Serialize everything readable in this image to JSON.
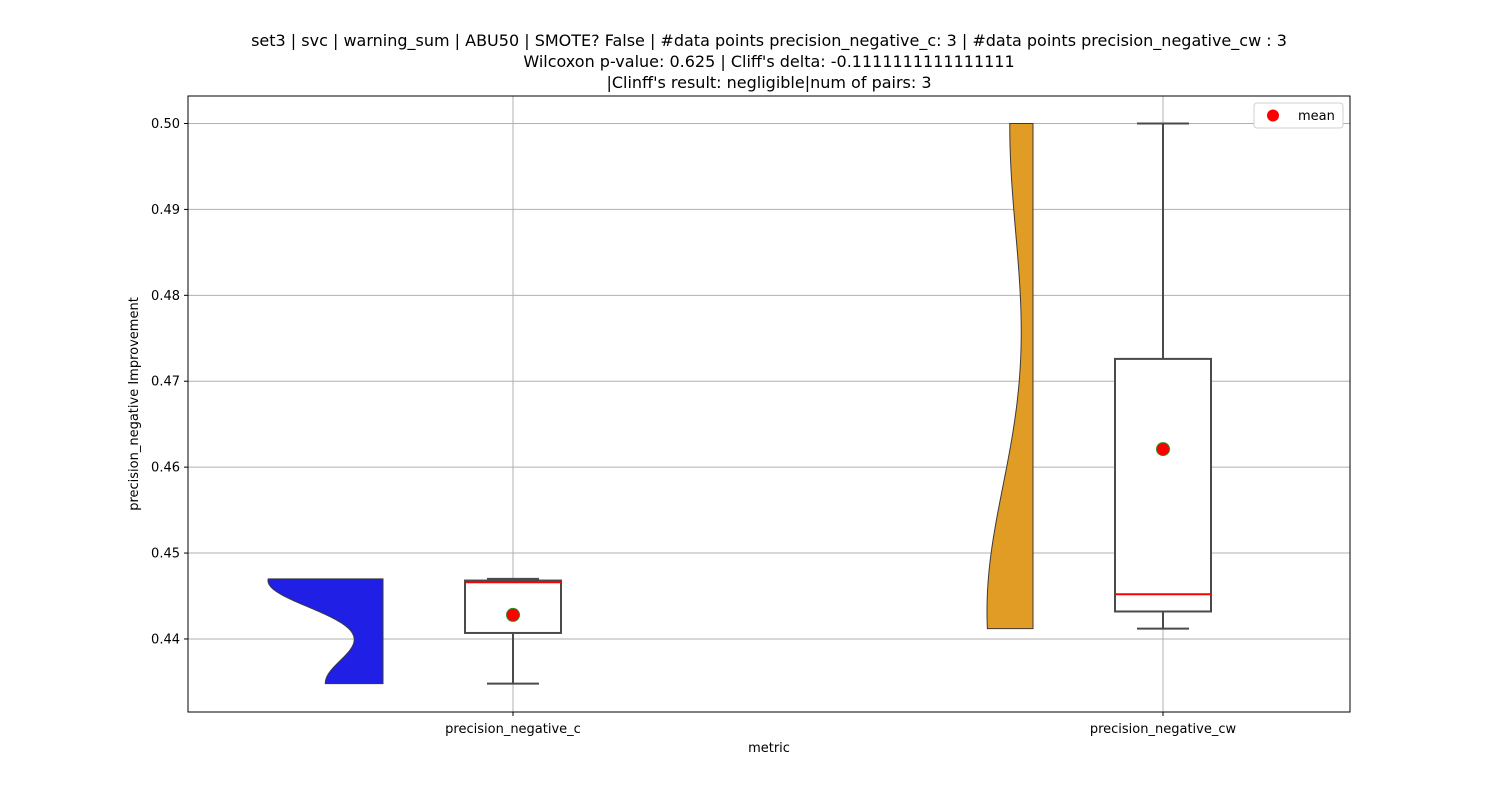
{
  "chart_data": {
    "type": "box",
    "title_lines": [
      "set3 | svc | warning_sum | ABU50 | SMOTE? False | #data points precision_negative_c: 3 | #data points precision_negative_cw : 3",
      "Wilcoxon p-value: 0.625 | Cliff's delta: -0.1111111111111111",
      "|Clinff's result: negligible|num of pairs: 3"
    ],
    "xlabel": "metric",
    "ylabel": "precision_negative Improvement",
    "categories": [
      "precision_negative_c",
      "precision_negative_cw"
    ],
    "ylim": [
      0.4315,
      0.5032
    ],
    "yticks": [
      0.44,
      0.45,
      0.46,
      0.47,
      0.48,
      0.49,
      0.5
    ],
    "ytick_labels": [
      "0.44",
      "0.45",
      "0.46",
      "0.47",
      "0.48",
      "0.49",
      "0.50"
    ],
    "grid": true,
    "legend": {
      "position": "top-right",
      "entries": [
        {
          "label": "mean",
          "marker": "circle",
          "color": "#ff0000"
        }
      ]
    },
    "series": [
      {
        "category": "precision_negative_c",
        "points": [
          0.4348,
          0.4466,
          0.447
        ],
        "box": {
          "whisker_low": 0.4348,
          "q1": 0.4407,
          "median": 0.4466,
          "q3": 0.4468,
          "whisker_high": 0.447
        },
        "mean": 0.4428,
        "violin": {
          "color": "#1f1fe5",
          "side": "left",
          "bottom": 0.4348,
          "top": 0.447
        }
      },
      {
        "category": "precision_negative_cw",
        "points": [
          0.4412,
          0.4452,
          0.5
        ],
        "box": {
          "whisker_low": 0.4412,
          "q1": 0.4432,
          "median": 0.4452,
          "q3": 0.4726,
          "whisker_high": 0.5
        },
        "mean": 0.4621,
        "violin": {
          "color": "#e09c24",
          "side": "left",
          "bottom": 0.4412,
          "top": 0.5
        }
      }
    ],
    "colors": {
      "median": "#ff0000",
      "mean_fill": "#ff0000",
      "mean_edge": "#2e8b20",
      "box_edge": "#4a4a4a",
      "grid": "#b0b0b0"
    }
  }
}
